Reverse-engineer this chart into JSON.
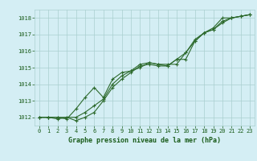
{
  "x": [
    0,
    1,
    2,
    3,
    4,
    5,
    6,
    7,
    8,
    9,
    10,
    11,
    12,
    13,
    14,
    15,
    16,
    17,
    18,
    19,
    20,
    21,
    22,
    23
  ],
  "series1": [
    1012.0,
    1012.0,
    1012.0,
    1011.9,
    1012.5,
    1013.2,
    1013.8,
    1013.2,
    1014.3,
    1014.7,
    1014.8,
    1015.2,
    1015.3,
    1015.2,
    1015.1,
    1015.5,
    1015.9,
    1016.6,
    1017.1,
    1017.3,
    1017.8,
    1018.0,
    1018.1,
    1018.2
  ],
  "series2": [
    1012.0,
    1012.0,
    1011.9,
    1012.0,
    1011.8,
    1012.0,
    1012.3,
    1013.0,
    1013.8,
    1014.3,
    1014.7,
    1015.1,
    1015.2,
    1015.1,
    1015.1,
    1015.5,
    1015.5,
    1016.6,
    1017.1,
    1017.3,
    1017.7,
    1018.0,
    1018.1,
    1018.2
  ],
  "series3": [
    1012.0,
    1012.0,
    1012.0,
    1012.0,
    1012.0,
    1012.3,
    1012.7,
    1013.1,
    1014.0,
    1014.5,
    1014.8,
    1015.0,
    1015.3,
    1015.2,
    1015.2,
    1015.2,
    1015.9,
    1016.7,
    1017.1,
    1017.4,
    1018.0,
    1018.0,
    1018.1,
    1018.2
  ],
  "ylim": [
    1011.5,
    1018.5
  ],
  "yticks": [
    1012,
    1013,
    1014,
    1015,
    1016,
    1017,
    1018
  ],
  "xlim": [
    -0.5,
    23.5
  ],
  "xticks": [
    0,
    1,
    2,
    3,
    4,
    5,
    6,
    7,
    8,
    9,
    10,
    11,
    12,
    13,
    14,
    15,
    16,
    17,
    18,
    19,
    20,
    21,
    22,
    23
  ],
  "line_color": "#2d6a2d",
  "bg_color": "#d4eef4",
  "grid_color": "#aacfcf",
  "xlabel": "Graphe pression niveau de la mer (hPa)",
  "xlabel_color": "#1a5c1a",
  "axis_label_color": "#1a5c1a",
  "marker": "+",
  "marker_size": 3,
  "line_width": 0.8
}
